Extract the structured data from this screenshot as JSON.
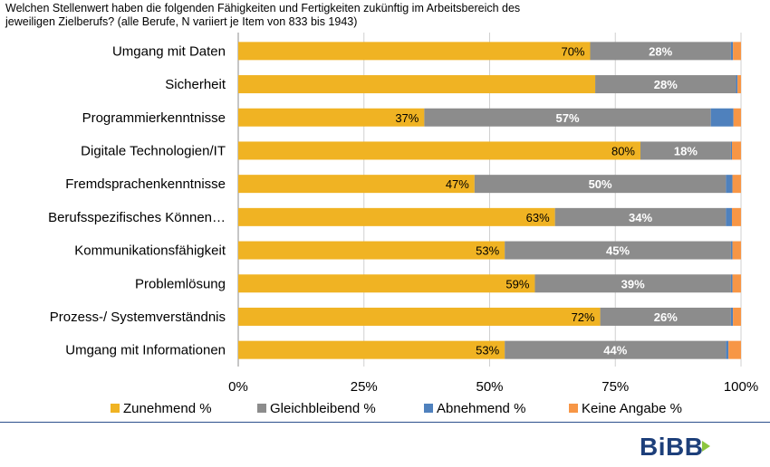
{
  "title_line1": "Welchen Stellenwert haben die folgenden Fähigkeiten und Fertigkeiten zukünftig im Arbeitsbereich des",
  "title_line2": "jeweiligen Zielberufs? (alle Berufe, N variiert je Item von 833 bis 1943)",
  "logo_text": "BiBB",
  "chart_data": {
    "type": "bar",
    "orientation": "horizontal",
    "stacked": true,
    "categories": [
      "Umgang mit Daten",
      "Sicherheit",
      "Programmierkenntnisse",
      "Digitale Technologien/IT",
      "Fremdsprachenkenntnisse",
      "Berufsspezifisches Können…",
      "Kommunikationsfähigkeit",
      "Problemlösung",
      "Prozess-/ Systemverständnis",
      "Umgang mit Informationen"
    ],
    "series": [
      {
        "name": "Zunehmend %",
        "color": "#f0b323",
        "values": [
          70,
          71,
          37,
          80,
          47,
          63,
          53,
          59,
          72,
          53
        ],
        "labels": [
          "70%",
          "",
          "37%",
          "80%",
          "47%",
          "63%",
          "53%",
          "59%",
          "72%",
          "53%"
        ]
      },
      {
        "name": "Gleichbleibend %",
        "color": "#8c8c8c",
        "values": [
          28,
          28,
          57,
          18,
          50,
          34,
          45,
          39,
          26,
          44
        ],
        "labels": [
          "28%",
          "28%",
          "57%",
          "18%",
          "50%",
          "34%",
          "45%",
          "39%",
          "26%",
          "44%"
        ]
      },
      {
        "name": "Abnehmend %",
        "color": "#4f81bd",
        "values": [
          0.4,
          0.3,
          4.5,
          0.2,
          1.3,
          1.2,
          0.3,
          0.3,
          0.4,
          0.5
        ],
        "labels": [
          "",
          "",
          "",
          "",
          "",
          "",
          "",
          "",
          "",
          ""
        ]
      },
      {
        "name": "Keine Angabe %",
        "color": "#f79646",
        "values": [
          1.6,
          0.7,
          1.5,
          1.8,
          1.7,
          1.8,
          1.7,
          1.7,
          1.6,
          2.5
        ],
        "labels": [
          "",
          "",
          "",
          "",
          "",
          "",
          "",
          "",
          "",
          ""
        ]
      }
    ],
    "x_ticks": [
      "0%",
      "25%",
      "50%",
      "75%",
      "100%"
    ],
    "xlim": [
      0,
      100
    ],
    "grid": true,
    "legend_position": "bottom"
  }
}
